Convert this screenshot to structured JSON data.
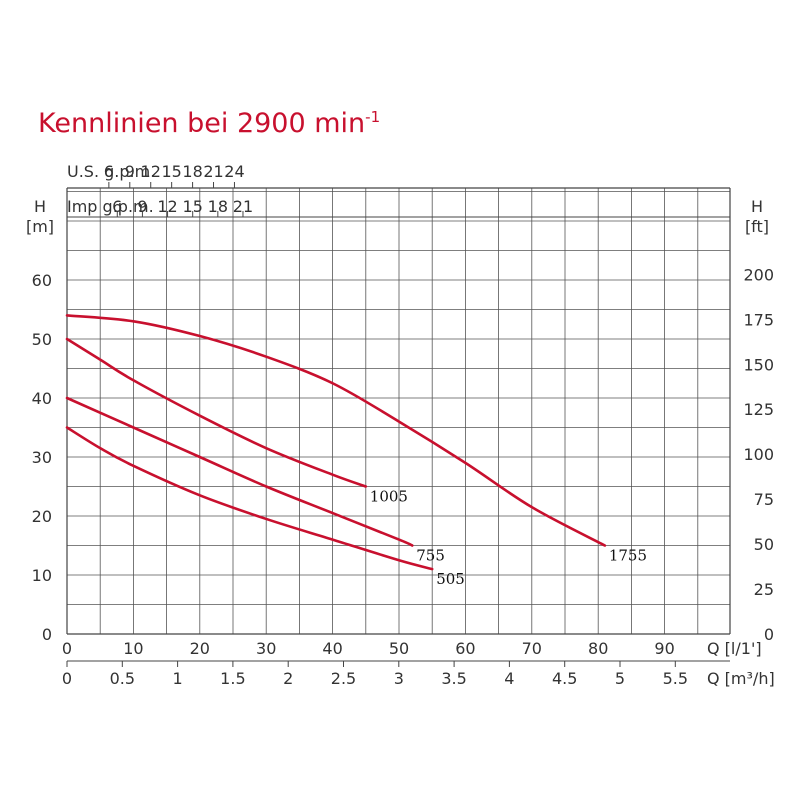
{
  "title": {
    "text": "Kennlinien bei 2900 min",
    "sup": "-1"
  },
  "chart_data": {
    "type": "line",
    "flow_axis": {
      "label": "Q [l/1']",
      "min": 0,
      "max": 100,
      "ticks": [
        0,
        10,
        20,
        30,
        40,
        50,
        60,
        70,
        80,
        90
      ]
    },
    "flow_m3h_axis": {
      "label": "Q [m³/h]",
      "min": 0,
      "max": 6,
      "ticks": [
        0,
        0.5,
        1,
        1.5,
        2,
        2.5,
        3,
        3.5,
        4,
        4.5,
        5,
        5.5
      ]
    },
    "usgpm_axis": {
      "label": "U.S. g.p.m.",
      "ticks": [
        6,
        9,
        12,
        15,
        18,
        21,
        24
      ]
    },
    "impgpm_axis": {
      "label": "Imp g.p.m.",
      "ticks": [
        6,
        9,
        12,
        15,
        18,
        21
      ]
    },
    "head_m_axis": {
      "label_top": "H",
      "label_unit": "[m]",
      "min": 0,
      "max": 70,
      "ticks": [
        0,
        10,
        20,
        30,
        40,
        50,
        60
      ]
    },
    "head_ft_axis": {
      "label_top": "H",
      "label_unit": "[ft]",
      "ticks": [
        0,
        25,
        50,
        75,
        100,
        125,
        150,
        175,
        200
      ]
    },
    "series": [
      {
        "name": "505",
        "x": [
          0,
          5,
          10,
          20,
          30,
          40,
          50,
          55
        ],
        "y": [
          35,
          31.5,
          28.5,
          23.5,
          19.5,
          16,
          12.5,
          11
        ]
      },
      {
        "name": "755",
        "x": [
          0,
          10,
          20,
          30,
          40,
          50,
          52
        ],
        "y": [
          40,
          35,
          30,
          25,
          20.5,
          16,
          15
        ]
      },
      {
        "name": "1005",
        "x": [
          0,
          5,
          10,
          20,
          30,
          40,
          45
        ],
        "y": [
          50,
          46.5,
          43,
          37,
          31.5,
          27,
          25
        ]
      },
      {
        "name": "1755",
        "x": [
          0,
          10,
          20,
          30,
          40,
          50,
          60,
          70,
          81
        ],
        "y": [
          54,
          53,
          50.5,
          47,
          42.5,
          36,
          29,
          21.5,
          15
        ]
      }
    ]
  }
}
